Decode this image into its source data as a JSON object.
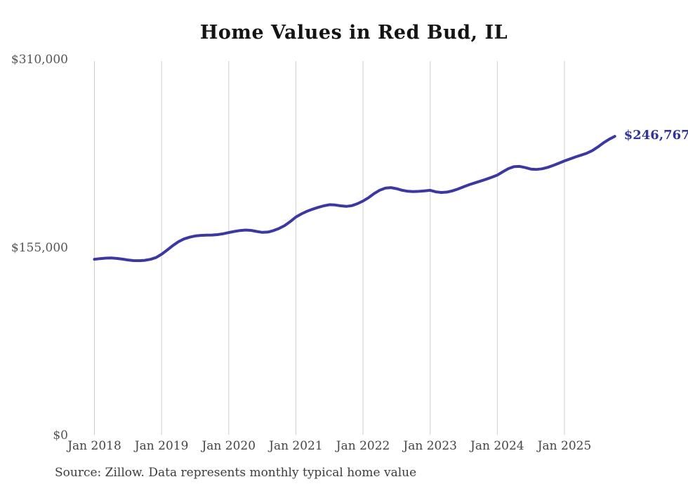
{
  "title": "Home Values in Red Bud, IL",
  "source_note": "Source: Zillow. Data represents monthly typical home value",
  "latest_value_label": "$246,767",
  "colors": {
    "line": "#3b38a1",
    "latest_value_label": "#32329b",
    "title": "#141414",
    "y_axis_text": "#555555",
    "x_axis_text": "#454545",
    "source_text": "#3c3c3c",
    "gridline": "#cccccc",
    "background": "#ffffff"
  },
  "chart_data": {
    "type": "line",
    "title": "Home Values in Red Bud, IL",
    "xlabel": "",
    "ylabel": "",
    "ylim": [
      0,
      310000
    ],
    "grid": "vertical-only",
    "legend": "none",
    "y_ticks": [
      {
        "label": "$310,000",
        "value": 310000
      },
      {
        "label": "$155,000",
        "value": 155000
      },
      {
        "label": "$0",
        "value": 0
      }
    ],
    "x_ticks": [
      {
        "label": "Jan 2018",
        "month_index": 0
      },
      {
        "label": "Jan 2019",
        "month_index": 12
      },
      {
        "label": "Jan 2020",
        "month_index": 24
      },
      {
        "label": "Jan 2021",
        "month_index": 36
      },
      {
        "label": "Jan 2022",
        "month_index": 48
      },
      {
        "label": "Jan 2023",
        "month_index": 60
      },
      {
        "label": "Jan 2024",
        "month_index": 72
      },
      {
        "label": "Jan 2025",
        "month_index": 84
      }
    ],
    "series": [
      {
        "name": "Monthly typical home value",
        "start": "Jan 2018",
        "frequency": "monthly",
        "end_value": 246767,
        "values": [
          145400,
          145900,
          146300,
          146400,
          146100,
          145500,
          144800,
          144300,
          144200,
          144500,
          145300,
          146800,
          149500,
          153000,
          156600,
          159800,
          162100,
          163600,
          164600,
          165100,
          165300,
          165400,
          165700,
          166400,
          167400,
          168300,
          169100,
          169500,
          169200,
          168300,
          167600,
          167800,
          169000,
          170800,
          173200,
          176500,
          180200,
          182800,
          185000,
          186700,
          188200,
          189500,
          190400,
          190200,
          189500,
          189000,
          189600,
          191200,
          193400,
          196200,
          199600,
          202400,
          204100,
          204500,
          203600,
          202300,
          201500,
          201200,
          201400,
          201800,
          202300,
          201000,
          200500,
          200800,
          201800,
          203400,
          205200,
          206900,
          208400,
          209900,
          211400,
          213000,
          214800,
          217600,
          220200,
          221800,
          222000,
          221000,
          219800,
          219500,
          220000,
          221200,
          222800,
          224600,
          226500,
          228200,
          229800,
          231300,
          232900,
          235100,
          238100,
          241500,
          244400,
          246767
        ]
      }
    ]
  }
}
